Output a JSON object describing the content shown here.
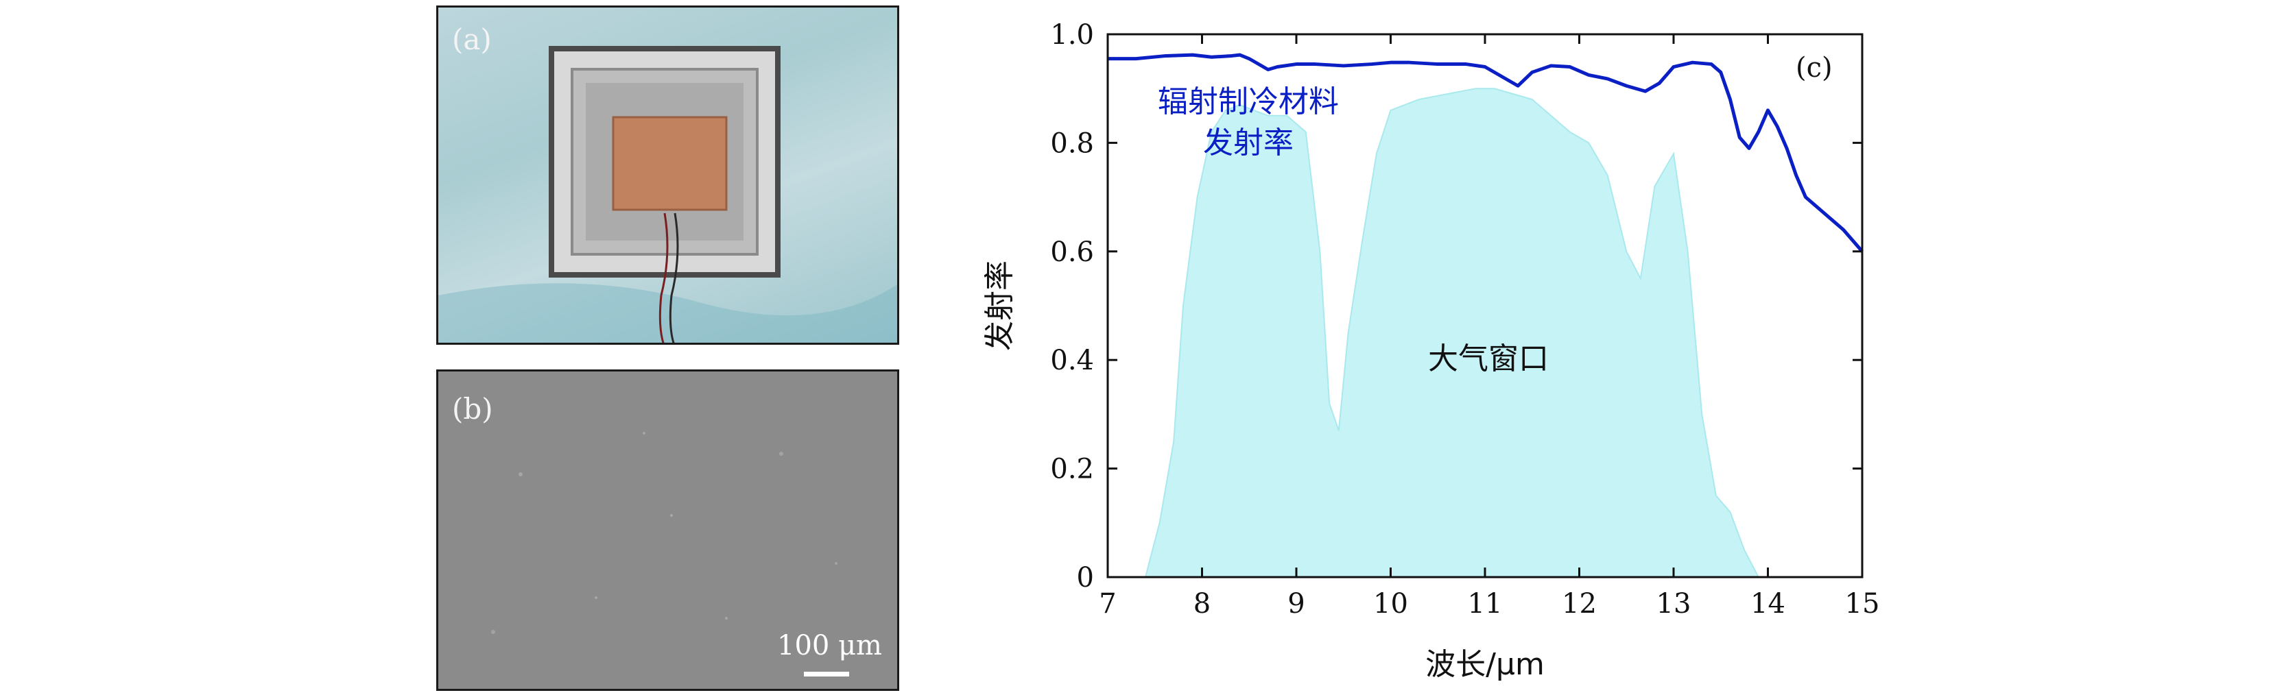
{
  "panel_a": {
    "label": "(a)"
  },
  "panel_b": {
    "label": "(b)",
    "scale_bar_label": "100 μm"
  },
  "chart_data": {
    "type": "area",
    "panel_label": "(c)",
    "xlabel": "波长/μm",
    "ylabel": "发射率",
    "xlim": [
      7,
      15
    ],
    "ylim": [
      0,
      1.0
    ],
    "x_ticks": [
      7,
      8,
      9,
      10,
      11,
      12,
      13,
      14,
      15
    ],
    "y_ticks": [
      0,
      0.2,
      0.4,
      0.6,
      0.8,
      1.0
    ],
    "y_tick_labels": [
      "0",
      "0.2",
      "0.4",
      "0.6",
      "0.8",
      "1.0"
    ],
    "grid": false,
    "annotations": {
      "material_line1": "辐射制冷材料",
      "material_line2": "发射率",
      "window": "大气窗口"
    },
    "colors": {
      "emissivity_line": "#0a1fc4",
      "atmosphere_fill": "#c6f3f6",
      "atmosphere_stroke": "#a9e9ee"
    },
    "series": [
      {
        "x": [
          7.0,
          7.3,
          7.6,
          7.9,
          8.1,
          8.3,
          8.4,
          8.5,
          8.7,
          8.8,
          9.0,
          9.2,
          9.5,
          9.8,
          10.0,
          10.2,
          10.5,
          10.8,
          11.0,
          11.2,
          11.35,
          11.5,
          11.7,
          11.9,
          12.1,
          12.3,
          12.5,
          12.7,
          12.85,
          13.0,
          13.2,
          13.4,
          13.5,
          13.6,
          13.7,
          13.8,
          13.9,
          14.0,
          14.1,
          14.2,
          14.3,
          14.4,
          14.6,
          14.8,
          15.0
        ],
        "values": [
          0.955,
          0.955,
          0.96,
          0.962,
          0.958,
          0.96,
          0.962,
          0.955,
          0.935,
          0.94,
          0.945,
          0.945,
          0.942,
          0.945,
          0.948,
          0.948,
          0.945,
          0.945,
          0.94,
          0.92,
          0.905,
          0.93,
          0.942,
          0.94,
          0.925,
          0.918,
          0.905,
          0.895,
          0.91,
          0.94,
          0.948,
          0.945,
          0.93,
          0.88,
          0.81,
          0.79,
          0.82,
          0.86,
          0.83,
          0.79,
          0.74,
          0.7,
          0.67,
          0.64,
          0.6
        ]
      },
      {
        "x": [
          7.4,
          7.55,
          7.7,
          7.8,
          7.95,
          8.1,
          8.25,
          8.4,
          8.55,
          8.7,
          8.9,
          9.1,
          9.25,
          9.35,
          9.45,
          9.55,
          9.7,
          9.85,
          10.0,
          10.3,
          10.6,
          10.9,
          11.1,
          11.3,
          11.5,
          11.7,
          11.9,
          12.1,
          12.3,
          12.5,
          12.65,
          12.8,
          13.0,
          13.15,
          13.3,
          13.45,
          13.6,
          13.75,
          13.9
        ],
        "values": [
          0.0,
          0.1,
          0.25,
          0.5,
          0.7,
          0.82,
          0.86,
          0.87,
          0.86,
          0.85,
          0.85,
          0.82,
          0.6,
          0.32,
          0.27,
          0.45,
          0.62,
          0.78,
          0.86,
          0.88,
          0.89,
          0.9,
          0.9,
          0.89,
          0.88,
          0.85,
          0.82,
          0.8,
          0.74,
          0.6,
          0.55,
          0.72,
          0.78,
          0.6,
          0.3,
          0.15,
          0.12,
          0.05,
          0.0
        ]
      }
    ]
  }
}
